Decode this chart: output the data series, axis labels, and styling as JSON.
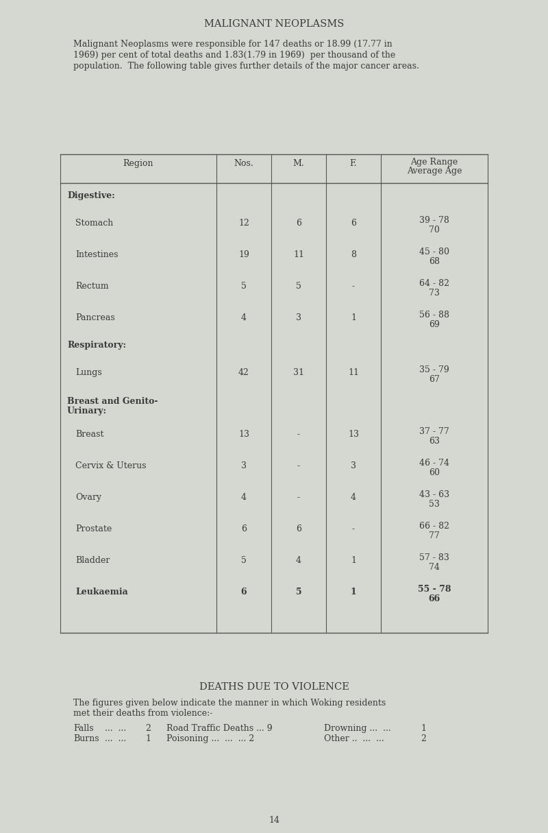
{
  "title": "MALIGNANT NEOPLASMS",
  "intro_lines": [
    "Malignant Neoplasms were responsible for 147 deaths or 18.99 (17.77 in",
    "1969) per cent of total deaths and 1.83(1.79 in 1969)  per thousand of the",
    "population.  The following table gives further details of the major cancer areas."
  ],
  "col_headers": [
    "Region",
    "Nos.",
    "M.",
    "F.",
    "Age Range\nAverage Age"
  ],
  "table_rows": [
    {
      "type": "section",
      "label": "Digestive:",
      "label2": null
    },
    {
      "type": "data",
      "region": "Stomach",
      "nos": "12",
      "m": "6",
      "f": "6",
      "age1": "39 - 78",
      "age2": "70"
    },
    {
      "type": "data",
      "region": "Intestines",
      "nos": "19",
      "m": "11",
      "f": "8",
      "age1": "45 - 80",
      "age2": "68"
    },
    {
      "type": "data",
      "region": "Rectum",
      "nos": "5",
      "m": "5",
      "f": "-",
      "age1": "64 - 82",
      "age2": "73"
    },
    {
      "type": "data",
      "region": "Pancreas",
      "nos": "4",
      "m": "3",
      "f": "1",
      "age1": "56 - 88",
      "age2": "69"
    },
    {
      "type": "section",
      "label": "Respiratory:",
      "label2": null
    },
    {
      "type": "data",
      "region": "Lungs",
      "nos": "42",
      "m": "31",
      "f": "11",
      "age1": "35 - 79",
      "age2": "67"
    },
    {
      "type": "section2",
      "label": "Breast and Genito-",
      "label2": "        Urinary:"
    },
    {
      "type": "data",
      "region": "Breast",
      "nos": "13",
      "m": "-",
      "f": "13",
      "age1": "37 - 77",
      "age2": "63"
    },
    {
      "type": "data",
      "region": "Cervix & Uterus",
      "nos": "3",
      "m": "-",
      "f": "3",
      "age1": "46 - 74",
      "age2": "60"
    },
    {
      "type": "data",
      "region": "Ovary",
      "nos": "4",
      "m": "-",
      "f": "4",
      "age1": "43 - 63",
      "age2": "53"
    },
    {
      "type": "data",
      "region": "Prostate",
      "nos": "6",
      "m": "6",
      "f": "-",
      "age1": "66 - 82",
      "age2": "77"
    },
    {
      "type": "data",
      "region": "Bladder",
      "nos": "5",
      "m": "4",
      "f": "1",
      "age1": "57 - 83",
      "age2": "74"
    },
    {
      "type": "bold",
      "region": "Leukaemia",
      "nos": "6",
      "m": "5",
      "f": "1",
      "age1": "55 - 78",
      "age2": "66"
    },
    {
      "type": "empty"
    }
  ],
  "violence_title": "DEATHS DUE TO VIOLENCE",
  "violence_intro1": "The figures given below indicate the manner in which Woking residents",
  "violence_intro2": "met their deaths from violence:-",
  "violence_col1_r1": "Falls",
  "violence_col1_r1_dots": "...  ...",
  "violence_col1_r1_val": "2",
  "violence_col2_r1": "Road Traffic Deaths ... 9",
  "violence_col3_r1": "Drowning ...  ...",
  "violence_col3_r1_val": "1",
  "violence_col1_r2": "Burns",
  "violence_col1_r2_dots": "...  ...",
  "violence_col1_r2_val": "1",
  "violence_col2_r2": "Poisoning ...  ...  ... 2",
  "violence_col3_r2": "Other ..  ...  ...",
  "violence_col3_r2_val": "2",
  "page_number": "14",
  "bg_color": "#d4d8d0",
  "text_color": "#3a3a3a",
  "table_line_color": "#555555"
}
